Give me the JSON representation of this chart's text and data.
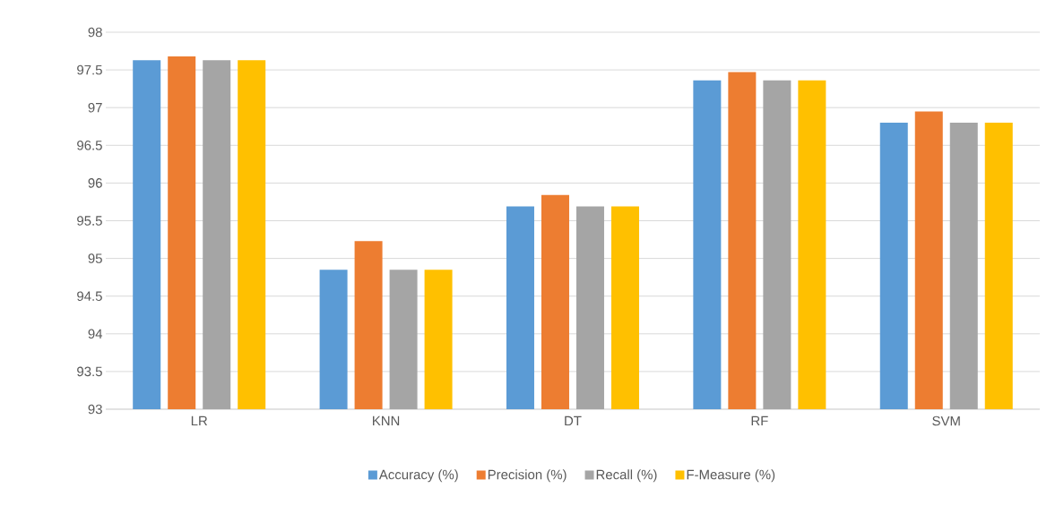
{
  "chart_data": {
    "type": "bar",
    "categories": [
      "LR",
      "KNN",
      "DT",
      "RF",
      "SVM"
    ],
    "series": [
      {
        "name": "Accuracy (%)",
        "color": "#5b9bd5",
        "values": [
          97.63,
          94.85,
          95.69,
          97.36,
          96.8
        ]
      },
      {
        "name": "Precision (%)",
        "color": "#ed7d31",
        "values": [
          97.68,
          95.23,
          95.84,
          97.47,
          96.95
        ]
      },
      {
        "name": "Recall (%)",
        "color": "#a5a5a5",
        "values": [
          97.63,
          94.85,
          95.69,
          97.36,
          96.8
        ]
      },
      {
        "name": "F-Measure (%)",
        "color": "#ffc000",
        "values": [
          97.63,
          94.85,
          95.69,
          97.36,
          96.8
        ]
      }
    ],
    "ylim": [
      93,
      98
    ],
    "yticks": [
      93,
      93.5,
      94,
      94.5,
      95,
      95.5,
      96,
      96.5,
      97,
      97.5,
      98
    ],
    "grid": "y",
    "legend": "bottom"
  }
}
